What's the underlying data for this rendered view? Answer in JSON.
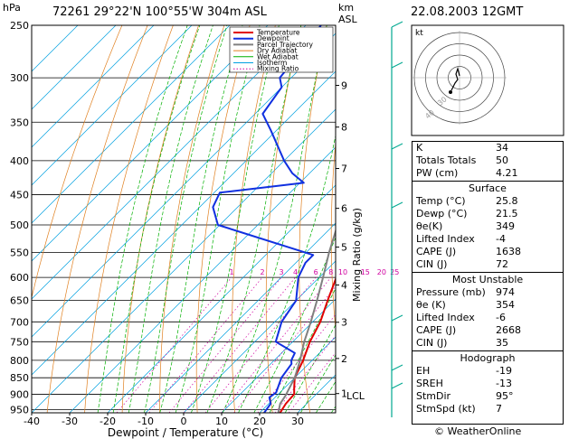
{
  "header": {
    "pressure_unit": "hPa",
    "station": "72261  29°22'N  100°55'W  304m  ASL",
    "height_unit_km": "km",
    "height_unit_asl": "ASL",
    "datetime": "22.08.2003  12GMT"
  },
  "colors": {
    "temperature": "#e00000",
    "dewpoint": "#1030e0",
    "parcel": "#808080",
    "dry_adiabat": "#e08020",
    "wet_adiabat": "#00b000",
    "isotherm": "#00a0e0",
    "mixing_ratio": "#d000a0",
    "wind": "#00a890"
  },
  "chart_data": {
    "type": "line",
    "xlabel": "Dewpoint / Temperature (°C)",
    "ylabel": "hPa",
    "ylabel_right": "Mixing Ratio (g/kg)",
    "xlim": [
      -40,
      40
    ],
    "ylim_hpa": [
      250,
      960
    ],
    "x_ticks": [
      "-40",
      "-30",
      "-20",
      "-10",
      "0",
      "10",
      "20",
      "30"
    ],
    "pressure_ticks": [
      "250",
      "300",
      "350",
      "400",
      "450",
      "500",
      "550",
      "600",
      "650",
      "700",
      "750",
      "800",
      "850",
      "900",
      "950"
    ],
    "height_km_labels": [
      {
        "km": "9",
        "p": 308
      },
      {
        "km": "8",
        "p": 356
      },
      {
        "km": "7",
        "p": 411
      },
      {
        "km": "6",
        "p": 472
      },
      {
        "km": "5",
        "p": 540
      },
      {
        "km": "4",
        "p": 616
      },
      {
        "km": "3",
        "p": 701
      },
      {
        "km": "2",
        "p": 795
      },
      {
        "km": "1",
        "p": 898
      }
    ],
    "lcl": {
      "label": "LCL",
      "p": 905
    },
    "mixing_ratio_labels": [
      "1",
      "2",
      "3",
      "4",
      "6",
      "8",
      "10",
      "15",
      "20",
      "25"
    ],
    "legend": [
      "Temperature",
      "Dewpoint",
      "Parcel Trajectory",
      "Dry Adiabat",
      "Wet Adiabat",
      "Isotherm",
      "Mixing Ratio"
    ],
    "series": [
      {
        "name": "Temperature",
        "points": [
          [
            25.8,
            974
          ],
          [
            24.5,
            930
          ],
          [
            24.2,
            900
          ],
          [
            22.5,
            880
          ],
          [
            20.0,
            850
          ],
          [
            17.6,
            800
          ],
          [
            14.5,
            750
          ],
          [
            12.0,
            700
          ],
          [
            8.3,
            650
          ],
          [
            4.5,
            600
          ],
          [
            1.5,
            560
          ],
          [
            -1.5,
            530
          ],
          [
            -5.0,
            500
          ],
          [
            -9.5,
            460
          ],
          [
            -13.5,
            420
          ],
          [
            -17.0,
            400
          ],
          [
            -22.5,
            350
          ],
          [
            -29.0,
            300
          ],
          [
            -35.5,
            265
          ],
          [
            -39.5,
            250
          ]
        ]
      },
      {
        "name": "Dewpoint",
        "points": [
          [
            21.5,
            974
          ],
          [
            20.5,
            930
          ],
          [
            18.5,
            910
          ],
          [
            19.0,
            895
          ],
          [
            16.5,
            850
          ],
          [
            15.5,
            810
          ],
          [
            14.5,
            800
          ],
          [
            13.5,
            780
          ],
          [
            5.5,
            750
          ],
          [
            1.8,
            700
          ],
          [
            0.0,
            650
          ],
          [
            -5.5,
            600
          ],
          [
            -7.5,
            570
          ],
          [
            -7.5,
            555
          ],
          [
            -40.5,
            500
          ],
          [
            -46.5,
            470
          ],
          [
            -48.5,
            447
          ],
          [
            -29.0,
            432
          ],
          [
            -34.5,
            418
          ],
          [
            -40.0,
            400
          ],
          [
            -51.5,
            360
          ],
          [
            -58.0,
            340
          ],
          [
            -60.0,
            310
          ],
          [
            -63.0,
            300
          ],
          [
            -64.0,
            280
          ],
          [
            -66.0,
            250
          ]
        ]
      },
      {
        "name": "Parcel Trajectory",
        "points": [
          [
            25.8,
            974
          ],
          [
            23.0,
            930
          ],
          [
            22.3,
            905
          ],
          [
            20.0,
            850
          ],
          [
            16.8,
            800
          ],
          [
            13.0,
            750
          ],
          [
            9.5,
            700
          ],
          [
            5.5,
            650
          ],
          [
            1.0,
            600
          ],
          [
            -4.0,
            550
          ],
          [
            -9.0,
            500
          ],
          [
            -14.8,
            450
          ],
          [
            -21.0,
            400
          ],
          [
            -28.3,
            350
          ],
          [
            -36.5,
            300
          ],
          [
            -41.5,
            275
          ]
        ]
      }
    ]
  },
  "hodograph": {
    "label": "kt",
    "ring_labels": [
      "40",
      "30"
    ]
  },
  "indices": {
    "top": [
      {
        "key": "K",
        "value": "34"
      },
      {
        "key": "Totals Totals",
        "value": "50"
      },
      {
        "key": "PW (cm)",
        "value": "4.21"
      }
    ],
    "surface_title": "Surface",
    "surface": [
      {
        "key": "Temp (°C)",
        "value": "25.8"
      },
      {
        "key": "Dewp (°C)",
        "value": "21.5"
      },
      {
        "key": "θe(K)",
        "value": "349"
      },
      {
        "key": "Lifted Index",
        "value": "-4"
      },
      {
        "key": "CAPE (J)",
        "value": "1638"
      },
      {
        "key": "CIN (J)",
        "value": "72"
      }
    ],
    "unstable_title": "Most Unstable",
    "unstable": [
      {
        "key": "Pressure (mb)",
        "value": "974"
      },
      {
        "key": "θe (K)",
        "value": "354"
      },
      {
        "key": "Lifted Index",
        "value": "-6"
      },
      {
        "key": "CAPE (J)",
        "value": "2668"
      },
      {
        "key": "CIN (J)",
        "value": "35"
      }
    ],
    "hodograph_title": "Hodograph",
    "hodo": [
      {
        "key": "EH",
        "value": "-19"
      },
      {
        "key": "SREH",
        "value": "-13"
      },
      {
        "key": "StmDir",
        "value": "95°"
      },
      {
        "key": "StmSpd (kt)",
        "value": "7"
      }
    ]
  },
  "footer": {
    "copyright": "© WeatherOnline"
  }
}
